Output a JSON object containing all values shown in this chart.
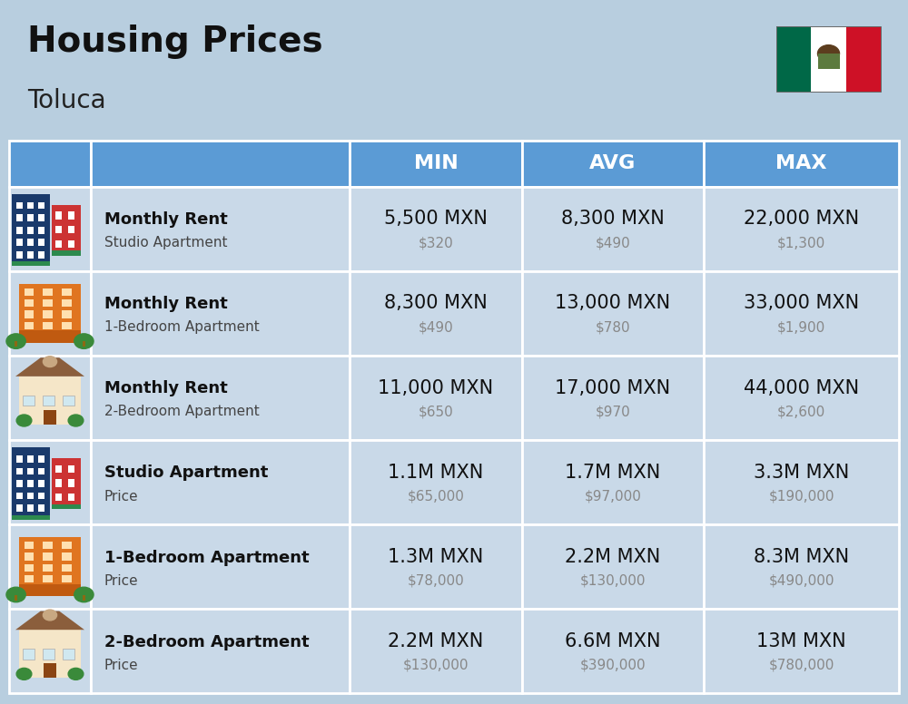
{
  "title": "Housing Prices",
  "subtitle": "Toluca",
  "background_color": "#b8cedf",
  "header_color": "#5b9bd5",
  "header_text_color": "#ffffff",
  "row_bg_light": "#c9d9e8",
  "row_bg_dark": "#b8cedf",
  "white": "#ffffff",
  "header_labels": [
    "MIN",
    "AVG",
    "MAX"
  ],
  "rows": [
    {
      "label_bold": "Monthly Rent",
      "label_sub": "Studio Apartment",
      "icon": "blue_tall",
      "min_main": "5,500 MXN",
      "min_sub": "$320",
      "avg_main": "8,300 MXN",
      "avg_sub": "$490",
      "max_main": "22,000 MXN",
      "max_sub": "$1,300"
    },
    {
      "label_bold": "Monthly Rent",
      "label_sub": "1-Bedroom Apartment",
      "icon": "orange_mid",
      "min_main": "8,300 MXN",
      "min_sub": "$490",
      "avg_main": "13,000 MXN",
      "avg_sub": "$780",
      "max_main": "33,000 MXN",
      "max_sub": "$1,900"
    },
    {
      "label_bold": "Monthly Rent",
      "label_sub": "2-Bedroom Apartment",
      "icon": "beige_house",
      "min_main": "11,000 MXN",
      "min_sub": "$650",
      "avg_main": "17,000 MXN",
      "avg_sub": "$970",
      "max_main": "44,000 MXN",
      "max_sub": "$2,600"
    },
    {
      "label_bold": "Studio Apartment",
      "label_sub": "Price",
      "icon": "blue_tall",
      "min_main": "1.1M MXN",
      "min_sub": "$65,000",
      "avg_main": "1.7M MXN",
      "avg_sub": "$97,000",
      "max_main": "3.3M MXN",
      "max_sub": "$190,000"
    },
    {
      "label_bold": "1-Bedroom Apartment",
      "label_sub": "Price",
      "icon": "orange_mid",
      "min_main": "1.3M MXN",
      "min_sub": "$78,000",
      "avg_main": "2.2M MXN",
      "avg_sub": "$130,000",
      "max_main": "8.3M MXN",
      "max_sub": "$490,000"
    },
    {
      "label_bold": "2-Bedroom Apartment",
      "label_sub": "Price",
      "icon": "beige_house",
      "min_main": "2.2M MXN",
      "min_sub": "$130,000",
      "avg_main": "6.6M MXN",
      "avg_sub": "$390,000",
      "max_main": "13M MXN",
      "max_sub": "$780,000"
    }
  ],
  "col_bounds": [
    0.01,
    0.1,
    0.385,
    0.575,
    0.775,
    0.99
  ],
  "main_text_size": 15,
  "sub_text_size": 11,
  "header_text_size": 16,
  "label_bold_size": 13,
  "label_sub_size": 11
}
